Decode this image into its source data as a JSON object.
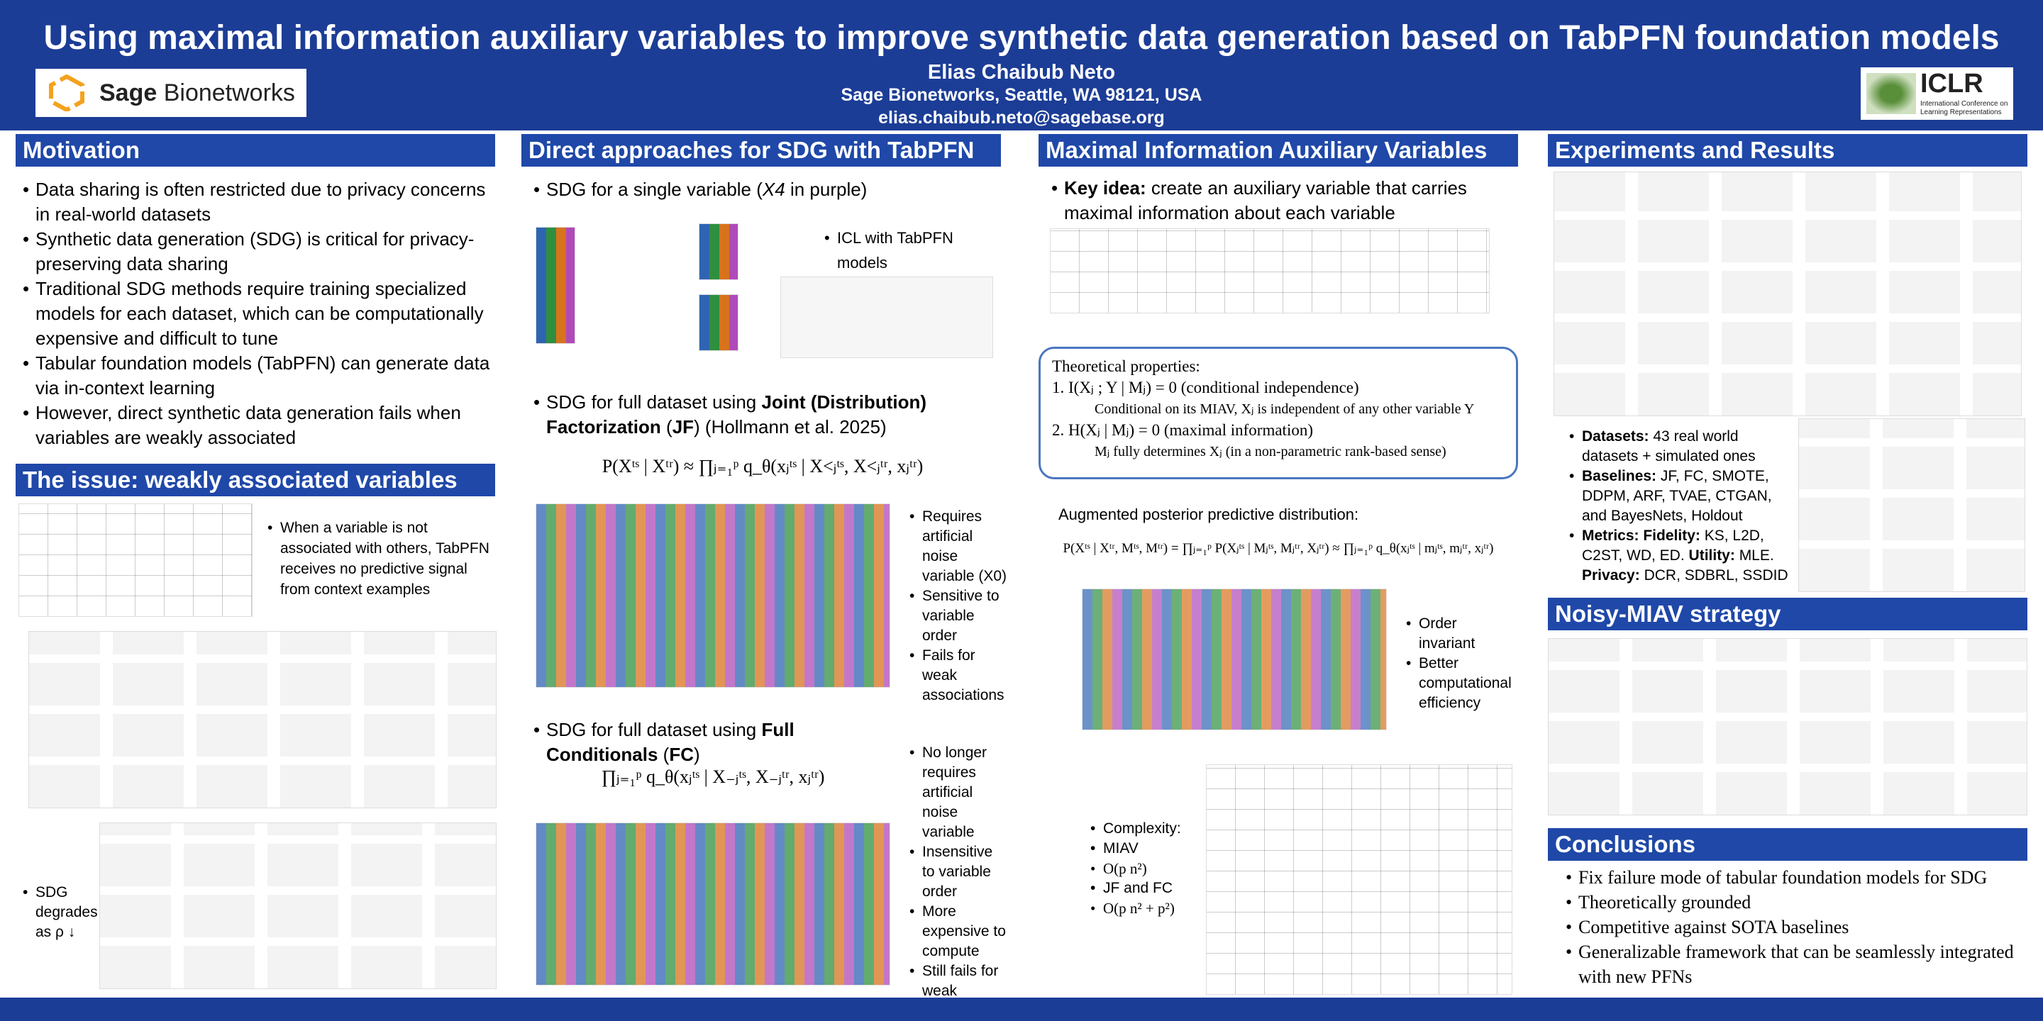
{
  "header": {
    "title": "Using maximal information auxiliary variables to improve synthetic data generation based on TabPFN foundation models",
    "author": "Elias Chaibub Neto",
    "affiliation": "Sage Bionetworks, Seattle, WA 98121, USA",
    "email": "elias.chaibub.neto@sagebase.org",
    "logo_left": [
      "Sage",
      "Bionetworks"
    ],
    "logo_right": {
      "name": "ICLR",
      "subtitle": "International Conference on Learning Representations"
    }
  },
  "motivation": {
    "title": "Motivation",
    "bullets": [
      "Data sharing is often restricted due to privacy concerns in real-world datasets",
      "Synthetic data generation (SDG) is critical for privacy-preserving data sharing",
      "Traditional SDG methods require training specialized models for each dataset, which can be computationally expensive and difficult to tune",
      "Tabular foundation models (TabPFN) can generate data via in-context learning",
      "However, direct synthetic data generation fails when variables are weakly associated"
    ]
  },
  "issue": {
    "title": "The issue: weakly associated variables",
    "note": "When a variable is not associated with others, TabPFN receives no predictive signal from context examples",
    "degrades": "SDG degrades as ρ ↓"
  },
  "direct": {
    "title": "Direct approaches for SDG with TabPFN",
    "single": [
      "SDG for a single variable (",
      "X4",
      " in purple)"
    ],
    "icl": "ICL with TabPFN models",
    "jf_intro": [
      "SDG for full dataset using ",
      "Joint (Distribution) Factorization",
      " (",
      "JF",
      ") (Hollmann et al. 2025)"
    ],
    "jf_formula": "P(Xᵗˢ | Xᵗʳ) ≈ ∏ⱼ₌₁ᵖ q_θ(xⱼᵗˢ | X<ⱼᵗˢ, X<ⱼᵗʳ, xⱼᵗʳ)",
    "jf_notes": [
      "Requires artificial noise variable (X0)",
      "Sensitive to variable order",
      "Fails for weak associations"
    ],
    "fc_intro": [
      "SDG for full dataset using ",
      "Full Conditionals",
      " (",
      "FC",
      ")"
    ],
    "fc_formula": "∏ⱼ₌₁ᵖ q_θ(xⱼᵗˢ | X₋ⱼᵗˢ, X₋ⱼᵗʳ, xⱼᵗʳ)",
    "fc_notes": [
      "No longer requires artificial noise variable",
      "Insensitive to variable order",
      "More expensive to compute",
      "Still fails for weak associations"
    ]
  },
  "miav": {
    "title": "Maximal Information Auxiliary Variables",
    "key_idea": [
      "Key idea:",
      " create an auxiliary variable that carries maximal information about each variable"
    ],
    "theory_title": "Theoretical properties:",
    "props": [
      {
        "main": "1. I(Xⱼ ; Y | Mⱼ) = 0 (conditional independence)",
        "sub": "Conditional on its MIAV, Xⱼ is independent of any other variable Y"
      },
      {
        "main": "2. H(Xⱼ | Mⱼ) = 0 (maximal information)",
        "sub": "Mⱼ fully determines Xⱼ  (in a non-parametric rank-based sense)"
      }
    ],
    "aug_title": "Augmented posterior predictive distribution:",
    "aug_formula": "P(Xᵗˢ | Xᵗʳ, Mᵗˢ, Mᵗʳ) = ∏ⱼ₌₁ᵖ P(Xⱼᵗˢ | Mⱼᵗˢ, Mⱼᵗʳ, Xⱼᵗʳ) ≈ ∏ⱼ₌₁ᵖ q_θ(xⱼᵗˢ | mⱼᵗˢ, mⱼᵗʳ, xⱼᵗʳ)",
    "notes": [
      "Order invariant",
      "Better computational efficiency"
    ],
    "complexity": [
      "Complexity:",
      "MIAV",
      "O(p n²)",
      "JF and FC",
      "O(p n² + p²)"
    ]
  },
  "experiments": {
    "title": "Experiments and Results",
    "datasets": [
      "Datasets:",
      " 43 real world datasets + simulated ones"
    ],
    "baselines": [
      "Baselines:",
      " JF, FC, SMOTE, DDPM, ARF, TVAE, CTGAN, and BayesNets, Holdout"
    ],
    "metrics": [
      "Metrics: Fidelity:",
      " KS, L2D, C2ST, WD, ED. ",
      "Utility:",
      " MLE. ",
      "Privacy:",
      " DCR, SDBRL, SSDID"
    ]
  },
  "noisy": {
    "title": "Noisy-MIAV strategy"
  },
  "conclusions": {
    "title": "Conclusions",
    "items": [
      "Fix failure mode of tabular foundation models for SDG",
      "Theoretically grounded",
      "Competitive against SOTA baselines",
      "Generalizable framework that can be seamlessly integrated with new PFNs"
    ]
  }
}
